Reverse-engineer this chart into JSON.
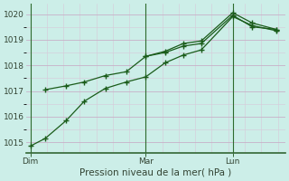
{
  "xlabel": "Pression niveau de la mer( hPa )",
  "bg_color": "#cceee8",
  "grid_color_major": "#c8b0c8",
  "grid_color_minor": "#d8c8d8",
  "line_color": "#1a5c1a",
  "vline_color": "#2d6b2d",
  "axis_color": "#336633",
  "text_color": "#334433",
  "ylim": [
    1014.6,
    1020.4
  ],
  "yticks": [
    1015,
    1016,
    1017,
    1018,
    1019,
    1020
  ],
  "xlim": [
    -0.15,
    8.5
  ],
  "x_day_labels": [
    [
      "Dim",
      0.0
    ],
    [
      "Mar",
      3.85
    ],
    [
      "Lun",
      6.75
    ]
  ],
  "vlines_x": [
    0.0,
    3.85,
    6.75
  ],
  "line1_x": [
    0.0,
    0.5,
    1.2,
    1.8,
    2.5,
    3.2,
    3.85,
    4.5,
    5.1,
    5.7,
    6.75,
    7.4,
    8.2
  ],
  "line1_y": [
    1014.85,
    1015.15,
    1015.85,
    1016.6,
    1017.1,
    1017.35,
    1017.55,
    1018.1,
    1018.4,
    1018.6,
    1019.9,
    1019.55,
    1019.35
  ],
  "line2_x": [
    0.5,
    1.2,
    1.8,
    2.5,
    3.2,
    3.85,
    4.5,
    5.1,
    5.7,
    6.75,
    7.4,
    8.2
  ],
  "line2_y": [
    1017.05,
    1017.2,
    1017.35,
    1017.6,
    1017.75,
    1018.35,
    1018.5,
    1018.75,
    1018.85,
    1019.95,
    1019.5,
    1019.4
  ],
  "line3_x": [
    3.85,
    4.5,
    5.1,
    5.7,
    6.75,
    7.4,
    8.2
  ],
  "line3_y": [
    1018.35,
    1018.55,
    1018.85,
    1018.95,
    1020.05,
    1019.65,
    1019.4
  ],
  "marker": "+",
  "marker_size": 4,
  "lw": 0.9
}
